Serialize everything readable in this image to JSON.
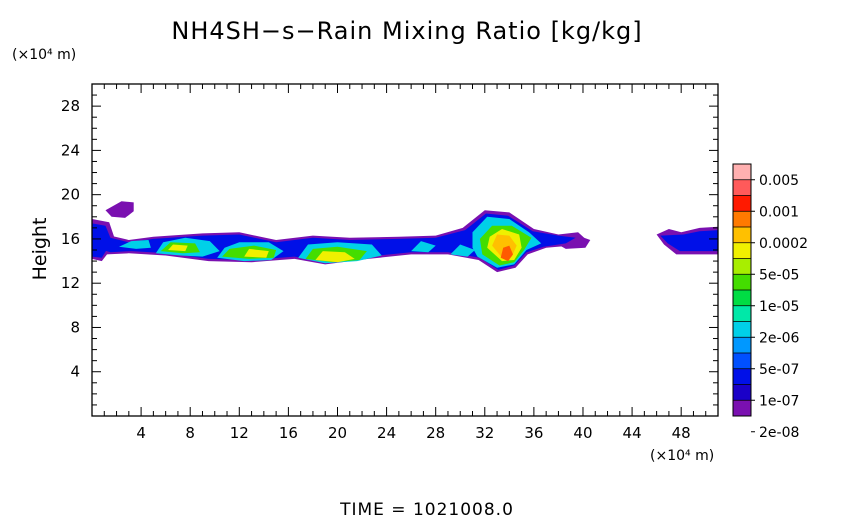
{
  "chart_data": {
    "type": "heatmap",
    "title": "NH4SH−s−Rain Mixing Ratio [kg/kg]",
    "ylabel": "Height",
    "x_unit": "(×10⁴ m)",
    "y_unit": "(×10⁴ m)",
    "xlim": [
      0,
      51
    ],
    "ylim": [
      0,
      30
    ],
    "x_ticks": [
      4,
      8,
      12,
      16,
      20,
      24,
      28,
      32,
      36,
      40,
      44,
      48
    ],
    "y_ticks": [
      4,
      8,
      12,
      16,
      20,
      24,
      28
    ],
    "x_minor_step": 1,
    "y_minor_step": 1,
    "time_label": "TIME  =  1021008.0",
    "colorbar": {
      "labels": [
        "0.005",
        "0.001",
        "0.0002",
        "5e-05",
        "1e-05",
        "2e-06",
        "5e-07",
        "1e-07",
        "2e-08"
      ],
      "colors": [
        "#ffb0b0",
        "#ff5a5a",
        "#ff1a00",
        "#ff7a00",
        "#ffc000",
        "#f0f000",
        "#a8ee00",
        "#44dd00",
        "#00dd44",
        "#00e8a8",
        "#00d0e8",
        "#0098ff",
        "#0050ff",
        "#0010e8",
        "#1a00c8",
        "#7a10b0"
      ]
    },
    "cloud_layers": [
      {
        "name": "base",
        "level": 0,
        "color": "#7a10b0",
        "polys": [
          [
            [
              0.3,
              15.0
            ],
            [
              1.2,
              14.6
            ],
            [
              3.0,
              14.7
            ],
            [
              6.0,
              14.5
            ],
            [
              9.5,
              14.0
            ],
            [
              13.0,
              13.9
            ],
            [
              16.5,
              14.2
            ],
            [
              19.0,
              13.7
            ],
            [
              22.5,
              14.2
            ],
            [
              26.0,
              14.6
            ],
            [
              29.0,
              14.6
            ],
            [
              31.5,
              14.1
            ],
            [
              33.0,
              13.0
            ],
            [
              34.5,
              13.4
            ],
            [
              35.5,
              14.6
            ],
            [
              37.0,
              15.2
            ],
            [
              39.0,
              15.4
            ],
            [
              40.4,
              15.8
            ],
            [
              39.6,
              16.6
            ],
            [
              38.0,
              16.4
            ],
            [
              36.0,
              16.9
            ],
            [
              34.0,
              18.4
            ],
            [
              32.0,
              18.6
            ],
            [
              30.2,
              17.0
            ],
            [
              28.0,
              16.3
            ],
            [
              25.0,
              16.2
            ],
            [
              21.0,
              16.1
            ],
            [
              18.0,
              16.3
            ],
            [
              15.0,
              15.9
            ],
            [
              12.0,
              16.6
            ],
            [
              9.0,
              16.5
            ],
            [
              5.0,
              16.2
            ],
            [
              3.0,
              15.9
            ],
            [
              1.5,
              16.3
            ],
            [
              0.3,
              16.5
            ]
          ],
          [
            [
              0.0,
              14.2
            ],
            [
              0.8,
              14.0
            ],
            [
              1.5,
              15.0
            ],
            [
              1.8,
              16.2
            ],
            [
              1.4,
              17.5
            ],
            [
              0.0,
              17.8
            ]
          ],
          [
            [
              1.1,
              18.6
            ],
            [
              2.4,
              19.4
            ],
            [
              3.4,
              19.3
            ],
            [
              3.4,
              18.5
            ],
            [
              2.7,
              17.9
            ],
            [
              1.6,
              18.0
            ]
          ],
          [
            [
              46.0,
              16.4
            ],
            [
              46.6,
              15.5
            ],
            [
              47.6,
              14.6
            ],
            [
              51.0,
              14.6
            ],
            [
              51.0,
              17.1
            ],
            [
              49.5,
              17.0
            ],
            [
              48.0,
              16.6
            ],
            [
              47.0,
              16.9
            ]
          ],
          [
            [
              37.8,
              15.6
            ],
            [
              38.6,
              15.1
            ],
            [
              40.2,
              15.2
            ],
            [
              40.6,
              15.9
            ],
            [
              39.6,
              16.3
            ]
          ]
        ]
      },
      {
        "name": "blue",
        "level": 1,
        "color": "#0010e8",
        "polys": [
          [
            [
              0.3,
              15.2
            ],
            [
              1.5,
              14.8
            ],
            [
              3.2,
              14.9
            ],
            [
              6.2,
              14.7
            ],
            [
              9.5,
              14.2
            ],
            [
              13.0,
              14.1
            ],
            [
              16.5,
              14.4
            ],
            [
              19.0,
              13.9
            ],
            [
              22.5,
              14.4
            ],
            [
              26.0,
              14.8
            ],
            [
              29.0,
              14.8
            ],
            [
              31.6,
              14.3
            ],
            [
              33.1,
              13.2
            ],
            [
              34.4,
              13.6
            ],
            [
              35.4,
              14.8
            ],
            [
              36.8,
              15.3
            ],
            [
              38.6,
              15.6
            ],
            [
              39.4,
              16.1
            ],
            [
              38.0,
              16.3
            ],
            [
              35.9,
              16.7
            ],
            [
              33.9,
              18.1
            ],
            [
              32.1,
              18.3
            ],
            [
              30.4,
              16.8
            ],
            [
              28.0,
              16.1
            ],
            [
              25.0,
              16.0
            ],
            [
              21.0,
              15.9
            ],
            [
              18.0,
              16.1
            ],
            [
              15.0,
              15.7
            ],
            [
              12.0,
              16.4
            ],
            [
              9.0,
              16.3
            ],
            [
              5.0,
              16.0
            ],
            [
              3.0,
              15.7
            ],
            [
              1.5,
              16.1
            ],
            [
              0.3,
              16.3
            ]
          ],
          [
            [
              0.0,
              14.4
            ],
            [
              0.8,
              14.3
            ],
            [
              1.3,
              15.2
            ],
            [
              1.5,
              16.1
            ],
            [
              1.1,
              17.2
            ],
            [
              0.0,
              17.4
            ]
          ],
          [
            [
              46.3,
              16.3
            ],
            [
              46.9,
              15.6
            ],
            [
              47.9,
              14.9
            ],
            [
              51.0,
              14.9
            ],
            [
              51.0,
              16.8
            ],
            [
              49.5,
              16.7
            ],
            [
              48.2,
              16.4
            ]
          ]
        ]
      },
      {
        "name": "cyan",
        "level": 2,
        "color": "#00d0e8",
        "polys": [
          [
            [
              2.2,
              15.3
            ],
            [
              3.6,
              15.1
            ],
            [
              4.8,
              15.2
            ],
            [
              4.6,
              15.9
            ],
            [
              3.2,
              15.8
            ]
          ],
          [
            [
              5.2,
              14.7
            ],
            [
              7.2,
              14.5
            ],
            [
              9.0,
              14.4
            ],
            [
              10.4,
              14.9
            ],
            [
              9.6,
              15.8
            ],
            [
              7.6,
              16.1
            ],
            [
              5.8,
              15.7
            ]
          ],
          [
            [
              10.2,
              14.3
            ],
            [
              12.4,
              14.0
            ],
            [
              14.6,
              14.1
            ],
            [
              15.6,
              14.9
            ],
            [
              14.4,
              15.7
            ],
            [
              12.0,
              15.7
            ],
            [
              10.8,
              15.2
            ]
          ],
          [
            [
              16.8,
              14.3
            ],
            [
              19.0,
              13.8
            ],
            [
              21.6,
              14.0
            ],
            [
              23.6,
              14.5
            ],
            [
              22.8,
              15.5
            ],
            [
              20.0,
              15.7
            ],
            [
              17.6,
              15.5
            ]
          ],
          [
            [
              26.0,
              14.9
            ],
            [
              27.4,
              14.8
            ],
            [
              28.0,
              15.4
            ],
            [
              26.8,
              15.8
            ]
          ],
          [
            [
              29.2,
              14.6
            ],
            [
              30.6,
              14.4
            ],
            [
              31.2,
              15.0
            ],
            [
              30.0,
              15.5
            ]
          ],
          [
            [
              31.4,
              14.4
            ],
            [
              33.0,
              13.4
            ],
            [
              34.4,
              13.7
            ],
            [
              35.4,
              15.0
            ],
            [
              36.6,
              15.6
            ],
            [
              35.6,
              16.6
            ],
            [
              34.0,
              17.8
            ],
            [
              32.2,
              18.0
            ],
            [
              31.0,
              16.6
            ],
            [
              31.0,
              15.2
            ]
          ]
        ]
      },
      {
        "name": "green",
        "level": 3,
        "color": "#44dd00",
        "polys": [
          [
            [
              5.6,
              14.9
            ],
            [
              7.4,
              14.7
            ],
            [
              8.8,
              14.8
            ],
            [
              8.4,
              15.6
            ],
            [
              6.4,
              15.7
            ]
          ],
          [
            [
              10.6,
              14.4
            ],
            [
              12.8,
              14.2
            ],
            [
              14.8,
              14.3
            ],
            [
              15.0,
              15.0
            ],
            [
              13.2,
              15.4
            ],
            [
              11.2,
              15.1
            ]
          ],
          [
            [
              17.4,
              14.2
            ],
            [
              19.6,
              13.9
            ],
            [
              21.8,
              14.1
            ],
            [
              22.4,
              14.9
            ],
            [
              20.0,
              15.3
            ],
            [
              18.0,
              15.1
            ]
          ],
          [
            [
              31.8,
              14.6
            ],
            [
              33.2,
              13.6
            ],
            [
              34.4,
              13.9
            ],
            [
              35.2,
              15.0
            ],
            [
              35.8,
              16.1
            ],
            [
              34.2,
              17.2
            ],
            [
              32.6,
              17.2
            ],
            [
              31.6,
              16.0
            ]
          ]
        ]
      },
      {
        "name": "yellow",
        "level": 4,
        "color": "#f0f000",
        "polys": [
          [
            [
              6.2,
              15.0
            ],
            [
              7.6,
              14.9
            ],
            [
              7.8,
              15.4
            ],
            [
              6.6,
              15.5
            ]
          ],
          [
            [
              12.4,
              14.4
            ],
            [
              14.2,
              14.3
            ],
            [
              14.4,
              14.9
            ],
            [
              12.8,
              15.1
            ]
          ],
          [
            [
              18.2,
              14.1
            ],
            [
              20.0,
              13.9
            ],
            [
              21.4,
              14.2
            ],
            [
              20.6,
              14.8
            ],
            [
              18.8,
              14.9
            ]
          ],
          [
            [
              32.2,
              15.2
            ],
            [
              33.4,
              14.0
            ],
            [
              34.4,
              14.1
            ],
            [
              35.0,
              15.2
            ],
            [
              34.8,
              16.4
            ],
            [
              33.4,
              16.9
            ],
            [
              32.4,
              16.2
            ]
          ]
        ]
      },
      {
        "name": "orange",
        "level": 5,
        "color": "#ffc000",
        "polys": [
          [
            [
              32.6,
              15.4
            ],
            [
              33.4,
              14.3
            ],
            [
              34.2,
              14.4
            ],
            [
              34.6,
              15.4
            ],
            [
              34.0,
              16.3
            ],
            [
              33.0,
              16.4
            ]
          ]
        ]
      },
      {
        "name": "red",
        "level": 6,
        "color": "#ff5a00",
        "polys": [
          [
            [
              33.3,
              14.3
            ],
            [
              33.9,
              14.0
            ],
            [
              34.3,
              14.6
            ],
            [
              34.0,
              15.4
            ],
            [
              33.5,
              15.2
            ]
          ]
        ]
      }
    ]
  }
}
